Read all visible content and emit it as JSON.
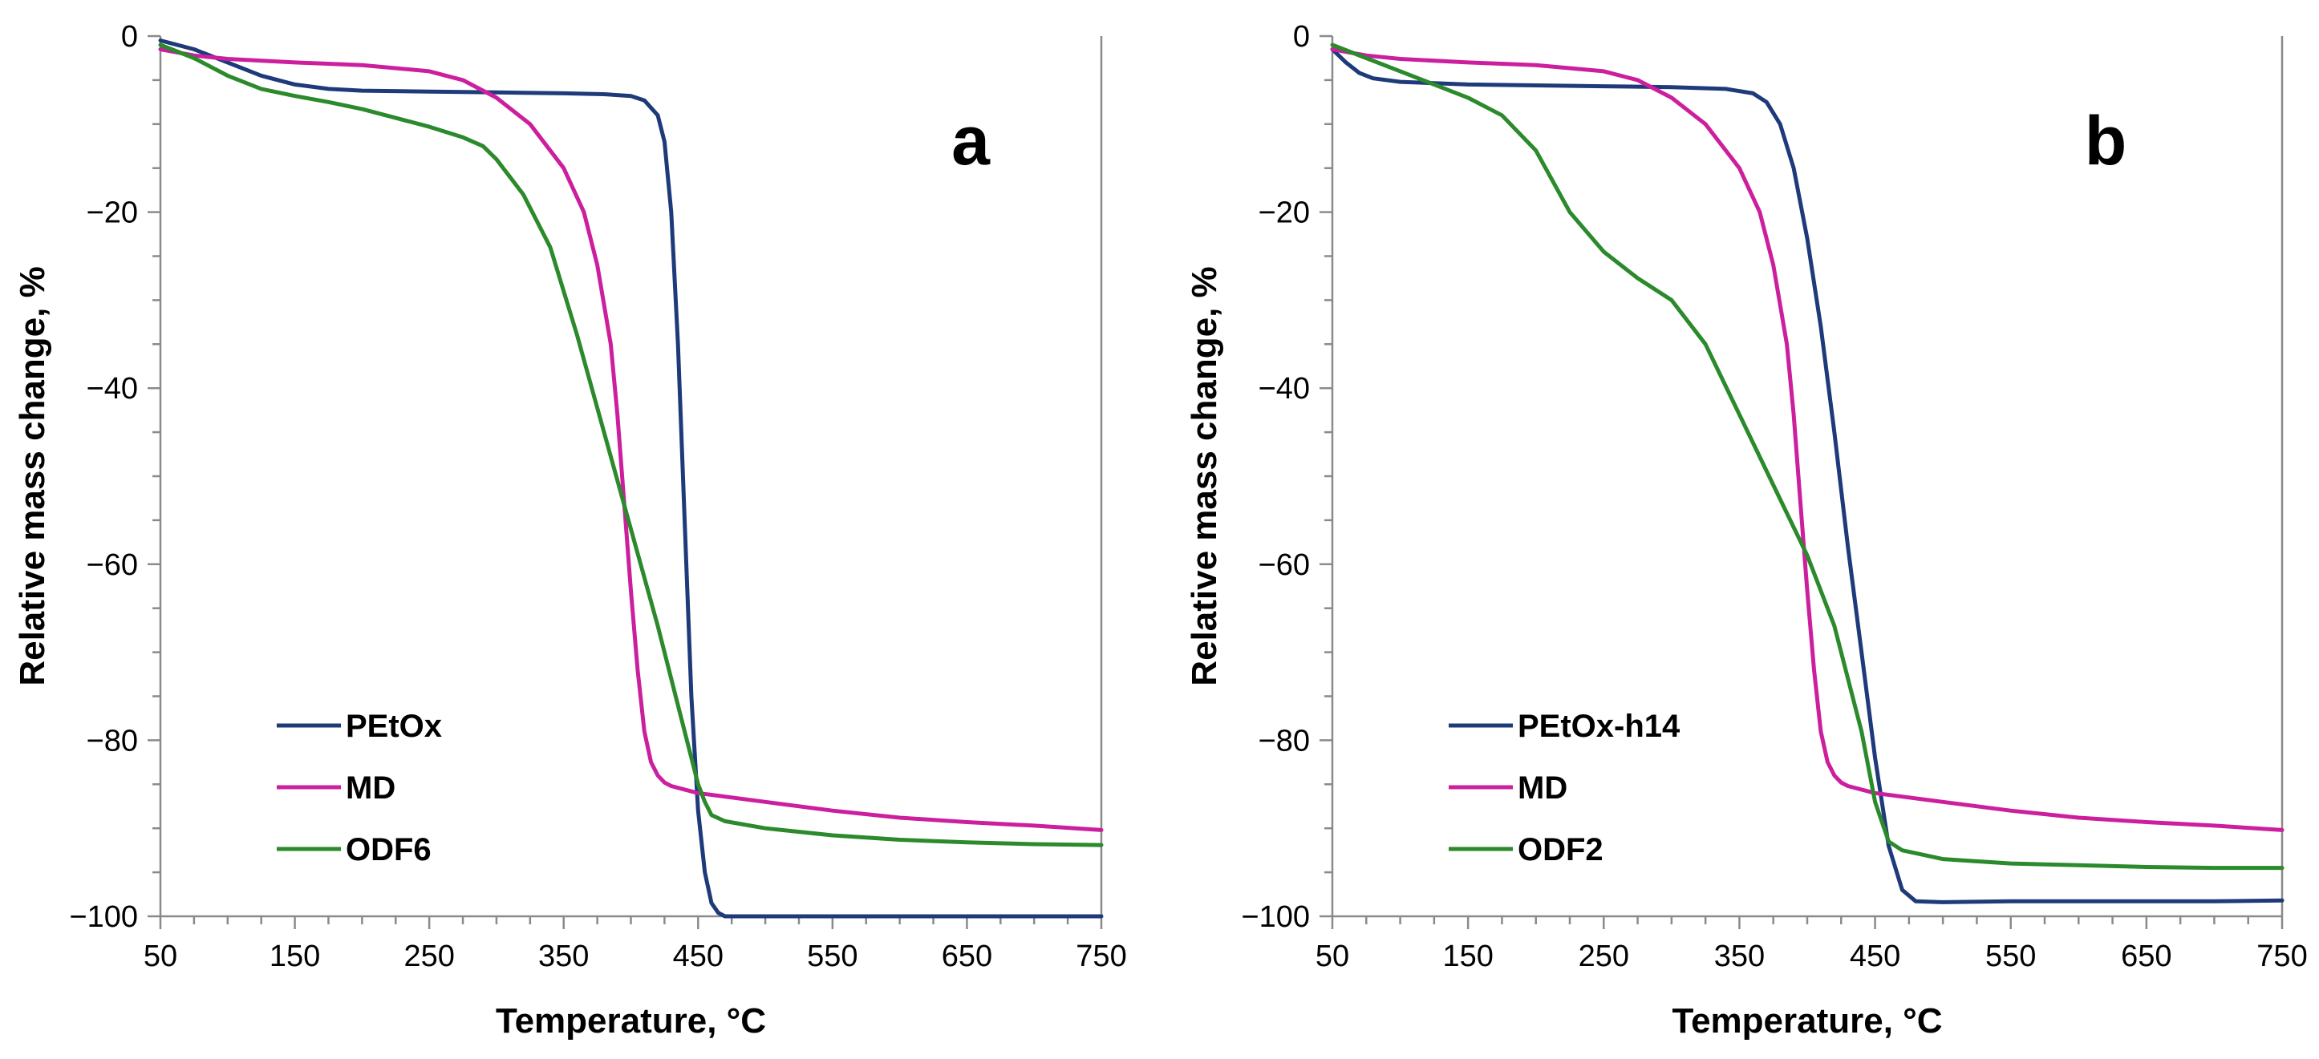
{
  "chart_data": [
    {
      "type": "line",
      "panel_label": "a",
      "xlabel": "Temperature, °C",
      "ylabel": "Relative mass change, %",
      "xlim": [
        50,
        750
      ],
      "ylim": [
        -100,
        0
      ],
      "xticks": [
        50,
        150,
        250,
        350,
        450,
        550,
        650,
        750
      ],
      "yticks": [
        0,
        -20,
        -40,
        -60,
        -80,
        -100
      ],
      "ytick_labels": [
        "0",
        "−20",
        "−40",
        "−60",
        "−80",
        "−100"
      ],
      "grid": false,
      "legend_position": "bottom-left",
      "series": [
        {
          "name": "PEtOx",
          "color": "#1f3a7a",
          "x": [
            50,
            75,
            100,
            125,
            150,
            175,
            200,
            250,
            300,
            350,
            380,
            400,
            410,
            420,
            425,
            430,
            435,
            440,
            445,
            450,
            455,
            460,
            465,
            470,
            480,
            500,
            550,
            600,
            650,
            700,
            750
          ],
          "y": [
            -0.5,
            -1.5,
            -3,
            -4.5,
            -5.5,
            -6.0,
            -6.2,
            -6.3,
            -6.4,
            -6.5,
            -6.6,
            -6.8,
            -7.3,
            -9.0,
            -12,
            -20,
            -35,
            -55,
            -75,
            -88,
            -95,
            -98.5,
            -99.6,
            -100,
            -100,
            -100,
            -100,
            -100,
            -100,
            -100,
            -100
          ]
        },
        {
          "name": "MD",
          "color": "#cc1f9e",
          "x": [
            50,
            75,
            100,
            150,
            200,
            250,
            275,
            300,
            325,
            350,
            365,
            375,
            385,
            390,
            395,
            400,
            405,
            410,
            415,
            420,
            425,
            430,
            440,
            450,
            500,
            550,
            600,
            650,
            700,
            750
          ],
          "y": [
            -1.5,
            -2.2,
            -2.6,
            -3.0,
            -3.3,
            -4.0,
            -5.0,
            -7.0,
            -10.0,
            -15.0,
            -20.0,
            -26.0,
            -35.0,
            -43.0,
            -53.0,
            -63.0,
            -72.0,
            -79.0,
            -82.5,
            -84.0,
            -84.8,
            -85.2,
            -85.6,
            -86.0,
            -87.0,
            -88.0,
            -88.8,
            -89.3,
            -89.7,
            -90.2
          ]
        },
        {
          "name": "ODF6",
          "color": "#2b8a2b",
          "x": [
            50,
            75,
            100,
            125,
            150,
            175,
            200,
            225,
            250,
            275,
            290,
            300,
            320,
            340,
            360,
            380,
            400,
            420,
            440,
            450,
            455,
            460,
            470,
            500,
            550,
            600,
            650,
            700,
            750
          ],
          "y": [
            -1.0,
            -2.5,
            -4.5,
            -6.0,
            -6.8,
            -7.5,
            -8.3,
            -9.3,
            -10.3,
            -11.5,
            -12.5,
            -14.0,
            -18.0,
            -24.0,
            -34.0,
            -45.0,
            -56.0,
            -67.0,
            -79.0,
            -85.0,
            -87.0,
            -88.5,
            -89.2,
            -90.0,
            -90.8,
            -91.3,
            -91.6,
            -91.8,
            -91.9
          ]
        }
      ]
    },
    {
      "type": "line",
      "panel_label": "b",
      "xlabel": "Temperature, °C",
      "ylabel": "Relative mass change, %",
      "xlim": [
        50,
        750
      ],
      "ylim": [
        -100,
        0
      ],
      "xticks": [
        50,
        150,
        250,
        350,
        450,
        550,
        650,
        750
      ],
      "yticks": [
        0,
        -20,
        -40,
        -60,
        -80,
        -100
      ],
      "ytick_labels": [
        "0",
        "−20",
        "−40",
        "−60",
        "−80",
        "−100"
      ],
      "grid": false,
      "legend_position": "bottom-left",
      "series": [
        {
          "name": "PEtOx-h14",
          "color": "#1f3a7a",
          "x": [
            50,
            60,
            70,
            80,
            100,
            150,
            200,
            250,
            300,
            340,
            360,
            370,
            380,
            390,
            400,
            410,
            420,
            430,
            440,
            450,
            460,
            470,
            480,
            500,
            550,
            600,
            650,
            700,
            750
          ],
          "y": [
            -1.5,
            -3.0,
            -4.2,
            -4.8,
            -5.2,
            -5.5,
            -5.6,
            -5.7,
            -5.8,
            -6.0,
            -6.5,
            -7.5,
            -10.0,
            -15.0,
            -23.0,
            -33.0,
            -45.0,
            -58.0,
            -70.0,
            -82.0,
            -92.0,
            -97.0,
            -98.3,
            -98.4,
            -98.3,
            -98.3,
            -98.3,
            -98.3,
            -98.2
          ]
        },
        {
          "name": "MD",
          "color": "#cc1f9e",
          "x": [
            50,
            75,
            100,
            150,
            200,
            250,
            275,
            300,
            325,
            350,
            365,
            375,
            385,
            390,
            395,
            400,
            405,
            410,
            415,
            420,
            425,
            430,
            440,
            450,
            500,
            550,
            600,
            650,
            700,
            750
          ],
          "y": [
            -1.5,
            -2.2,
            -2.6,
            -3.0,
            -3.3,
            -4.0,
            -5.0,
            -7.0,
            -10.0,
            -15.0,
            -20.0,
            -26.0,
            -35.0,
            -43.0,
            -53.0,
            -63.0,
            -72.0,
            -79.0,
            -82.5,
            -84.0,
            -84.8,
            -85.2,
            -85.6,
            -86.0,
            -87.0,
            -88.0,
            -88.8,
            -89.3,
            -89.7,
            -90.2
          ]
        },
        {
          "name": "ODF2",
          "color": "#2b8a2b",
          "x": [
            50,
            75,
            100,
            125,
            150,
            175,
            200,
            225,
            250,
            275,
            300,
            325,
            350,
            375,
            400,
            420,
            440,
            450,
            460,
            470,
            500,
            550,
            600,
            650,
            700,
            750
          ],
          "y": [
            -1.0,
            -2.5,
            -4.0,
            -5.5,
            -7.0,
            -9.0,
            -13.0,
            -20.0,
            -24.5,
            -27.5,
            -30.0,
            -35.0,
            -43.0,
            -51.0,
            -59.0,
            -67.0,
            -79.0,
            -87.0,
            -91.5,
            -92.5,
            -93.5,
            -94.0,
            -94.2,
            -94.4,
            -94.5,
            -94.5
          ]
        }
      ]
    }
  ]
}
